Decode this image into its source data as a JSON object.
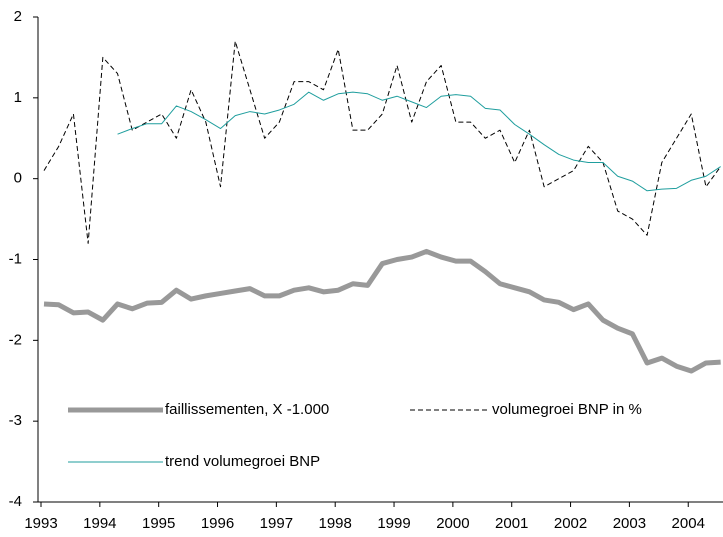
{
  "chart_data": {
    "type": "line",
    "categories": [
      "1993",
      null,
      null,
      null,
      "1994",
      null,
      null,
      null,
      "1995",
      null,
      null,
      null,
      "1996",
      null,
      null,
      null,
      "1997",
      null,
      null,
      null,
      "1998",
      null,
      null,
      null,
      "1999",
      null,
      null,
      null,
      "2000",
      null,
      null,
      null,
      "2001",
      null,
      null,
      null,
      "2002",
      null,
      null,
      null,
      "2003",
      null,
      null,
      null,
      "2004",
      null,
      null
    ],
    "ylim": [
      -4,
      2
    ],
    "yticks": [
      -4,
      -3,
      -2,
      -1,
      0,
      1,
      2
    ],
    "grid": false,
    "legend": "lower left",
    "series": [
      {
        "name": "faillissementen, X -1.000",
        "color": "#999999",
        "style": "solid",
        "width": 5,
        "values": [
          -1.55,
          -1.56,
          -1.66,
          -1.65,
          -1.75,
          -1.55,
          -1.61,
          -1.54,
          -1.53,
          -1.38,
          -1.49,
          -1.45,
          -1.42,
          -1.39,
          -1.36,
          -1.45,
          -1.45,
          -1.38,
          -1.35,
          -1.4,
          -1.38,
          -1.3,
          -1.32,
          -1.05,
          -1.0,
          -0.97,
          -0.9,
          -0.97,
          -1.02,
          -1.02,
          -1.15,
          -1.3,
          -1.35,
          -1.4,
          -1.5,
          -1.53,
          -1.62,
          -1.55,
          -1.75,
          -1.85,
          -1.92,
          -2.28,
          -2.22,
          -2.32,
          -2.38,
          -2.28,
          -2.27
        ]
      },
      {
        "name": "volumegroei BNP in %",
        "color": "#000000",
        "style": "dashed",
        "width": 1,
        "values": [
          0.1,
          0.4,
          0.8,
          -0.8,
          1.5,
          1.3,
          0.6,
          0.7,
          0.8,
          0.5,
          1.1,
          0.7,
          -0.1,
          1.7,
          1.1,
          0.5,
          0.7,
          1.2,
          1.2,
          1.1,
          1.6,
          0.6,
          0.6,
          0.8,
          1.4,
          0.7,
          1.2,
          1.4,
          0.7,
          0.7,
          0.5,
          0.6,
          0.2,
          0.6,
          -0.1,
          0.0,
          0.1,
          0.4,
          0.2,
          -0.4,
          -0.5,
          -0.7,
          0.2,
          0.5,
          0.8,
          -0.1,
          0.15
        ]
      },
      {
        "name": "trend volumegroei BNP",
        "color": "#1f9e9e",
        "style": "solid",
        "width": 1,
        "values": [
          null,
          null,
          null,
          null,
          null,
          0.55,
          0.62,
          0.68,
          0.68,
          0.9,
          0.83,
          0.73,
          0.62,
          0.78,
          0.83,
          0.8,
          0.85,
          0.92,
          1.07,
          0.97,
          1.05,
          1.07,
          1.05,
          0.97,
          1.02,
          0.95,
          0.88,
          1.02,
          1.04,
          1.02,
          0.87,
          0.85,
          0.67,
          0.55,
          0.42,
          0.3,
          0.23,
          0.2,
          0.2,
          0.03,
          -0.03,
          -0.15,
          -0.13,
          -0.12,
          -0.02,
          0.03,
          0.15
        ]
      }
    ]
  }
}
